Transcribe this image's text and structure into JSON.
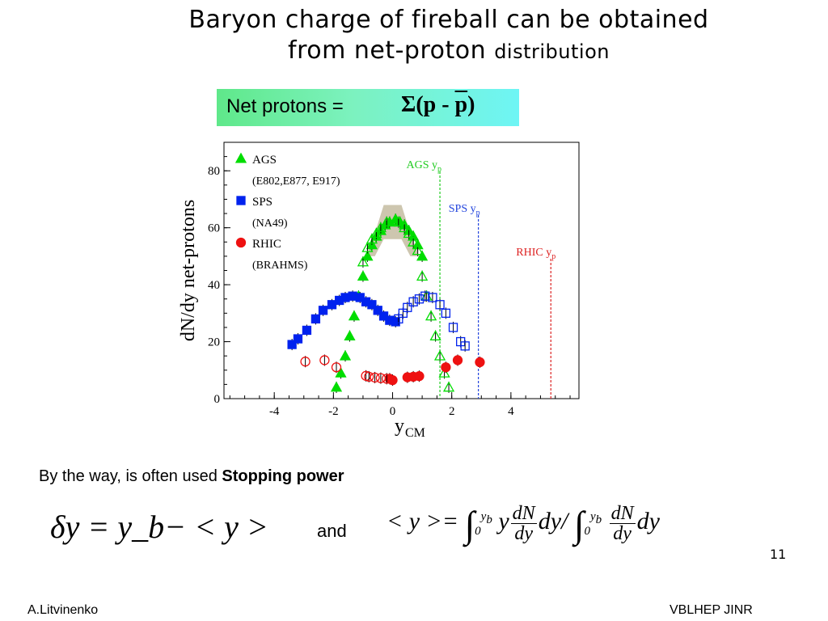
{
  "slide": {
    "title_line1": "Baryon charge of fireball can be obtained",
    "title_line2_main": "from net-proton",
    "title_line2_small": "distribution",
    "formula_label": "Net protons =",
    "formula_sigma": "Σ",
    "formula_open": "(p - ",
    "formula_pbar": "p",
    "formula_close": ")",
    "note_text": "By the way, is often used ",
    "note_bold": "Stopping power",
    "eq1": "δy = y_b− < y >",
    "eq_and": "and",
    "page_number": "11",
    "footer_left": "A.Litvinenko",
    "footer_right": "VBLHEP JINR"
  },
  "chart_data": {
    "type": "scatter",
    "xlabel": "y",
    "xlabel_sub": "CM",
    "ylabel": "dN/dy net-protons",
    "xlim": [
      -5.7,
      6.3
    ],
    "ylim": [
      0,
      90
    ],
    "xticks": [
      -4,
      -2,
      0,
      2,
      4
    ],
    "yticks": [
      0,
      20,
      40,
      60,
      80
    ],
    "legend": {
      "placement": "top-left",
      "entries": [
        {
          "series": "AGS",
          "label": "AGS",
          "sub": "(E802,E877, E917)"
        },
        {
          "series": "SPS",
          "label": "SPS",
          "sub": "(NA49)"
        },
        {
          "series": "RHIC",
          "label": "RHIC",
          "sub": "(BRAHMS)"
        }
      ]
    },
    "series": [
      {
        "name": "AGS",
        "marker": "triangle",
        "color": "#00dd00",
        "filled": [
          [
            -1.9,
            4
          ],
          [
            -1.75,
            9
          ],
          [
            -1.6,
            15
          ],
          [
            -1.45,
            22
          ],
          [
            -1.3,
            29
          ],
          [
            -1.15,
            36
          ],
          [
            -1.0,
            43
          ],
          [
            -0.85,
            50
          ],
          [
            -0.7,
            54
          ],
          [
            -0.55,
            57
          ],
          [
            -0.4,
            59
          ],
          [
            -0.25,
            61
          ],
          [
            -0.1,
            62
          ],
          [
            0.1,
            63
          ],
          [
            0.25,
            62
          ],
          [
            0.4,
            61
          ],
          [
            0.55,
            59
          ],
          [
            0.7,
            57
          ],
          [
            0.85,
            54
          ],
          [
            1.0,
            50
          ]
        ],
        "open": [
          [
            -1.0,
            48
          ],
          [
            -0.85,
            53
          ],
          [
            -0.7,
            56
          ],
          [
            -0.55,
            58
          ],
          [
            -0.4,
            60
          ],
          [
            -0.2,
            62
          ],
          [
            0.2,
            62
          ],
          [
            0.4,
            60
          ],
          [
            0.55,
            58
          ],
          [
            0.7,
            55
          ],
          [
            0.85,
            52
          ],
          [
            1.0,
            43
          ],
          [
            1.15,
            36
          ],
          [
            1.3,
            29
          ],
          [
            1.45,
            22
          ],
          [
            1.6,
            15
          ],
          [
            1.75,
            9
          ],
          [
            1.9,
            4
          ]
        ]
      },
      {
        "name": "SPS",
        "marker": "square",
        "color": "#0022ee",
        "filled": [
          [
            -3.4,
            19
          ],
          [
            -3.2,
            21
          ],
          [
            -2.9,
            24
          ],
          [
            -2.6,
            28
          ],
          [
            -2.35,
            31
          ],
          [
            -2.05,
            33
          ],
          [
            -1.8,
            34.5
          ],
          [
            -1.6,
            35.5
          ],
          [
            -1.35,
            36
          ],
          [
            -1.1,
            35.5
          ],
          [
            -0.9,
            34
          ],
          [
            -0.7,
            33
          ],
          [
            -0.5,
            31
          ],
          [
            -0.3,
            29
          ],
          [
            -0.1,
            27.5
          ],
          [
            0.1,
            27
          ]
        ],
        "open": [
          [
            0.2,
            28
          ],
          [
            0.35,
            30
          ],
          [
            0.5,
            32
          ],
          [
            0.7,
            34
          ],
          [
            0.9,
            35
          ],
          [
            1.1,
            36
          ],
          [
            1.35,
            35.5
          ],
          [
            1.6,
            33
          ],
          [
            1.8,
            30
          ],
          [
            2.05,
            25
          ],
          [
            2.3,
            20
          ],
          [
            2.45,
            18.5
          ]
        ]
      },
      {
        "name": "RHIC",
        "marker": "circle",
        "color": "#ee1111",
        "filled": [
          [
            -0.1,
            7
          ],
          [
            0.0,
            6.5
          ],
          [
            0.5,
            7.5
          ],
          [
            0.7,
            7.7
          ],
          [
            0.9,
            7.9
          ],
          [
            1.8,
            11
          ],
          [
            2.2,
            13.5
          ],
          [
            2.95,
            12.8
          ]
        ],
        "open": [
          [
            -2.95,
            13
          ],
          [
            -2.3,
            13.5
          ],
          [
            -1.9,
            11
          ],
          [
            -0.9,
            8
          ],
          [
            -0.8,
            7.7
          ],
          [
            -0.6,
            7.4
          ],
          [
            -0.4,
            7.2
          ],
          [
            -0.2,
            7
          ]
        ]
      }
    ],
    "band": {
      "color": "#c8c0a6",
      "x": [
        -0.9,
        0.9
      ],
      "center_peak": 64
    },
    "beam_rapidity_lines": [
      {
        "name": "AGS",
        "x": 1.6,
        "label": "AGS y",
        "sub": "p",
        "color": "#22cc22"
      },
      {
        "name": "SPS",
        "x": 2.9,
        "label": "SPS y",
        "sub": "p",
        "color": "#2244dd"
      },
      {
        "name": "RHIC",
        "x": 5.35,
        "label": "RHIC y",
        "sub": "p",
        "color": "#dd2222"
      }
    ]
  }
}
